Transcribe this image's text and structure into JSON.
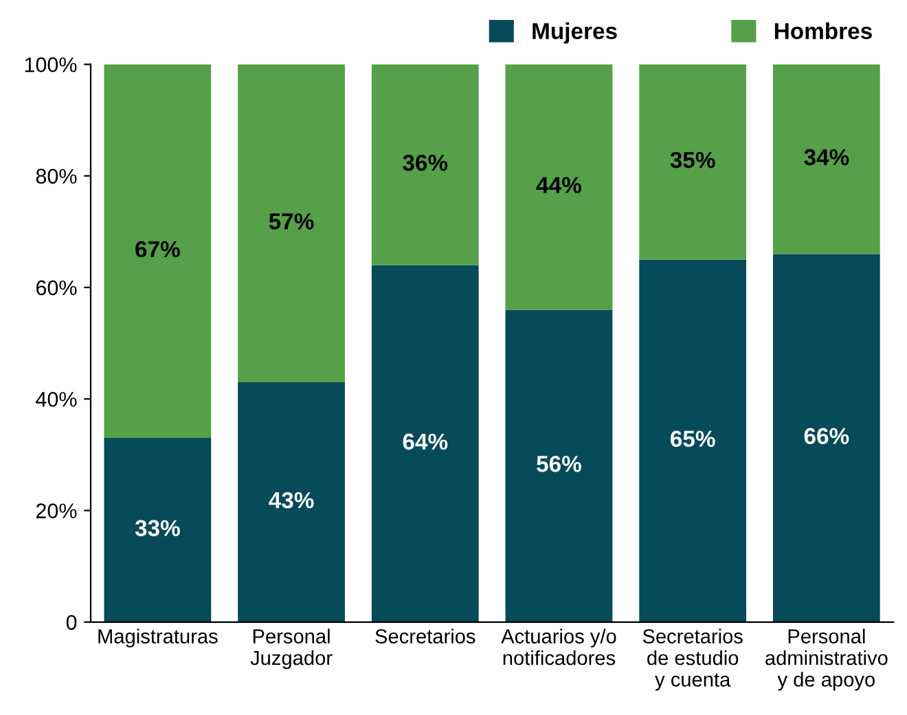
{
  "chart_data": {
    "type": "bar",
    "stacked": true,
    "categories": [
      "Magistraturas",
      "Personal\nJuzgador",
      "Secretarios",
      "Actuarios y/o\nnotificadores",
      "Secretarios\nde estudio\ny cuenta",
      "Personal\nadministrativo\ny de apoyo"
    ],
    "series": [
      {
        "name": "Mujeres",
        "color": "#074a5a",
        "values": [
          33,
          43,
          64,
          56,
          65,
          66
        ],
        "value_labels": [
          "33%",
          "43%",
          "64%",
          "56%",
          "65%",
          "66%"
        ]
      },
      {
        "name": "Hombres",
        "color": "#55a048",
        "values": [
          67,
          57,
          36,
          44,
          35,
          34
        ],
        "value_labels": [
          "67%",
          "57%",
          "36%",
          "44%",
          "35%",
          "34%"
        ]
      }
    ],
    "ylim": [
      0,
      100
    ],
    "yticks": [
      {
        "value": 0,
        "label": "0"
      },
      {
        "value": 20,
        "label": "20%"
      },
      {
        "value": 40,
        "label": "40%"
      },
      {
        "value": 60,
        "label": "60%"
      },
      {
        "value": 80,
        "label": "80%"
      },
      {
        "value": 100,
        "label": "100%"
      }
    ],
    "grid": false,
    "legend": "top right"
  }
}
